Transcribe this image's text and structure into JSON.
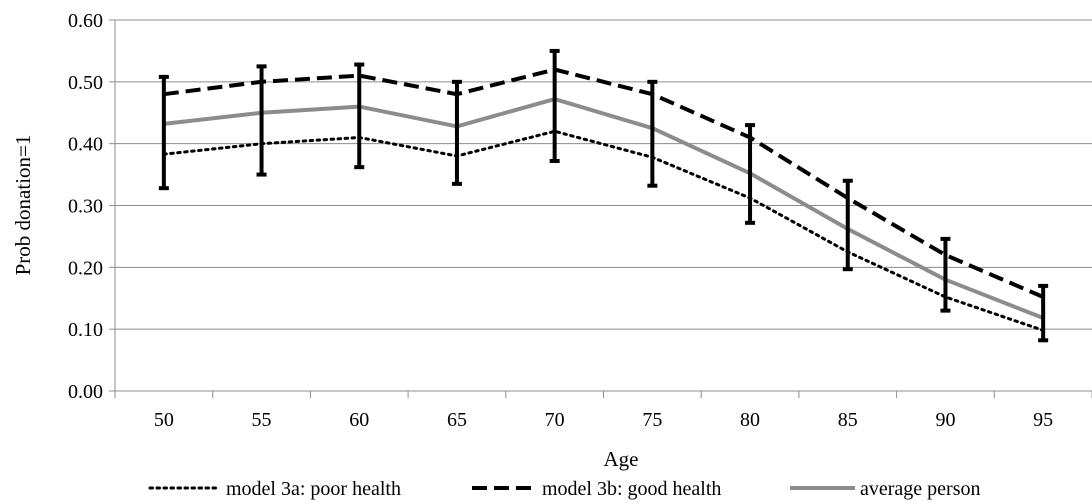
{
  "chart_data": {
    "type": "line",
    "title": "",
    "xlabel": "Age",
    "ylabel": "Prob donation=1",
    "x": [
      50,
      55,
      60,
      65,
      70,
      75,
      80,
      85,
      90,
      95
    ],
    "x_tick_labels": [
      "50",
      "55",
      "60",
      "65",
      "70",
      "75",
      "80",
      "85",
      "90",
      "95"
    ],
    "y_tick_labels": [
      "0.00",
      "0.10",
      "0.20",
      "0.30",
      "0.40",
      "0.50",
      "0.60"
    ],
    "ylim": [
      0,
      0.6
    ],
    "y_ticks": [
      0,
      0.1,
      0.2,
      0.3,
      0.4,
      0.5,
      0.6
    ],
    "grid": "horizontal",
    "legend_position": "bottom",
    "series": [
      {
        "name": "model 3a: poor health",
        "style": "dotted",
        "color": "#000000",
        "values": [
          0.383,
          0.4,
          0.41,
          0.38,
          0.42,
          0.378,
          0.312,
          0.225,
          0.152,
          0.098
        ]
      },
      {
        "name": "model 3b: good health",
        "style": "dashed",
        "color": "#000000",
        "values": [
          0.48,
          0.5,
          0.51,
          0.48,
          0.52,
          0.48,
          0.41,
          0.312,
          0.22,
          0.152
        ]
      },
      {
        "name": "average person",
        "style": "solid",
        "color": "#8c8c8c",
        "values": [
          0.432,
          0.45,
          0.46,
          0.428,
          0.472,
          0.425,
          0.352,
          0.262,
          0.18,
          0.118
        ]
      }
    ],
    "error_bars": {
      "color": "#000000",
      "ranges": [
        [
          0.328,
          0.508
        ],
        [
          0.35,
          0.525
        ],
        [
          0.362,
          0.528
        ],
        [
          0.335,
          0.5
        ],
        [
          0.372,
          0.55
        ],
        [
          0.332,
          0.5
        ],
        [
          0.272,
          0.43
        ],
        [
          0.197,
          0.34
        ],
        [
          0.13,
          0.246
        ],
        [
          0.082,
          0.17
        ]
      ]
    }
  }
}
